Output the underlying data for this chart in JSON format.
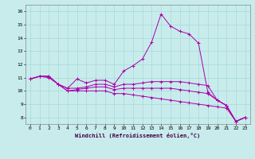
{
  "xlabel": "Windchill (Refroidissement éolien,°C)",
  "ylabel": "",
  "background_color": "#c8ecec",
  "grid_color": "#a8d8d8",
  "line_color": "#aa00aa",
  "xlim": [
    -0.5,
    23.5
  ],
  "ylim": [
    7.5,
    16.5
  ],
  "xticks": [
    0,
    1,
    2,
    3,
    4,
    5,
    6,
    7,
    8,
    9,
    10,
    11,
    12,
    13,
    14,
    15,
    16,
    17,
    18,
    19,
    20,
    21,
    22,
    23
  ],
  "yticks": [
    8,
    9,
    10,
    11,
    12,
    13,
    14,
    15,
    16
  ],
  "series": [
    [
      10.9,
      11.1,
      11.1,
      10.5,
      10.2,
      10.9,
      10.6,
      10.8,
      10.8,
      10.5,
      11.5,
      11.9,
      12.4,
      13.7,
      15.8,
      14.9,
      14.5,
      14.3,
      13.6,
      9.9,
      9.3,
      8.9,
      7.7,
      8.0
    ],
    [
      10.9,
      11.1,
      11.1,
      10.5,
      10.2,
      10.2,
      10.3,
      10.5,
      10.5,
      10.3,
      10.5,
      10.5,
      10.6,
      10.7,
      10.7,
      10.7,
      10.7,
      10.6,
      10.5,
      10.4,
      9.3,
      8.9,
      7.7,
      8.0
    ],
    [
      10.9,
      11.1,
      11.1,
      10.5,
      10.0,
      10.1,
      10.2,
      10.3,
      10.3,
      10.1,
      10.2,
      10.2,
      10.2,
      10.2,
      10.2,
      10.2,
      10.1,
      10.0,
      9.9,
      9.8,
      9.3,
      8.9,
      7.7,
      8.0
    ],
    [
      10.9,
      11.1,
      11.0,
      10.5,
      10.0,
      10.0,
      10.0,
      10.0,
      10.0,
      9.8,
      9.8,
      9.7,
      9.6,
      9.5,
      9.4,
      9.3,
      9.2,
      9.1,
      9.0,
      8.9,
      8.8,
      8.7,
      7.7,
      8.0
    ]
  ]
}
